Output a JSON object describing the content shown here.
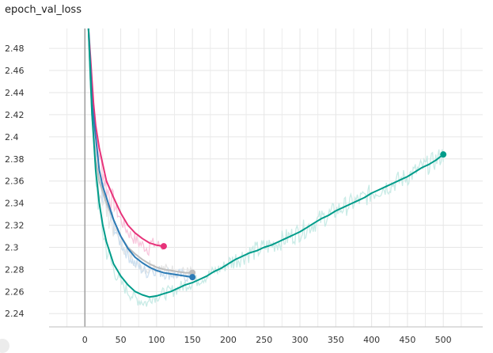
{
  "chart_data": {
    "type": "line",
    "title": "epoch_val_loss",
    "xlabel": "",
    "ylabel": "",
    "xlim": [
      -50,
      555
    ],
    "ylim": [
      2.228,
      2.498
    ],
    "x_ticks": [
      0,
      50,
      100,
      150,
      200,
      250,
      300,
      350,
      400,
      450,
      500
    ],
    "y_ticks": [
      2.24,
      2.26,
      2.28,
      2.3,
      2.32,
      2.34,
      2.36,
      2.38,
      2.4,
      2.42,
      2.44,
      2.46,
      2.48
    ],
    "grid": true,
    "legend": "none",
    "series": [
      {
        "color": "#e7337a",
        "raw_color": "#f7bcd6",
        "x": [
          5,
          8,
          10,
          12,
          15,
          20,
          25,
          30,
          40,
          50,
          60,
          70,
          80,
          90,
          100,
          110
        ],
        "values": [
          2.5,
          2.47,
          2.45,
          2.43,
          2.41,
          2.39,
          2.375,
          2.36,
          2.345,
          2.331,
          2.32,
          2.313,
          2.308,
          2.304,
          2.302,
          2.301
        ]
      },
      {
        "color": "#bdbdbd",
        "raw_color": "#e0e0e0",
        "x": [
          5,
          8,
          10,
          15,
          20,
          30,
          40,
          50,
          60,
          70,
          80,
          90,
          100,
          110,
          120,
          130,
          140,
          150
        ],
        "values": [
          2.5,
          2.45,
          2.42,
          2.38,
          2.36,
          2.34,
          2.325,
          2.31,
          2.3,
          2.294,
          2.289,
          2.285,
          2.282,
          2.28,
          2.279,
          2.278,
          2.277,
          2.277
        ]
      },
      {
        "color": "#2c7bb6",
        "raw_color": "#c7dcef",
        "x": [
          5,
          8,
          10,
          15,
          20,
          25,
          30,
          40,
          50,
          60,
          70,
          80,
          90,
          100,
          110,
          120,
          130,
          140,
          150
        ],
        "values": [
          2.5,
          2.46,
          2.43,
          2.4,
          2.37,
          2.355,
          2.345,
          2.325,
          2.31,
          2.299,
          2.291,
          2.286,
          2.282,
          2.279,
          2.277,
          2.276,
          2.275,
          2.274,
          2.273
        ]
      },
      {
        "color": "#009c8a",
        "raw_color": "#bfe8e2",
        "x": [
          5,
          8,
          10,
          12,
          15,
          20,
          25,
          30,
          35,
          40,
          50,
          60,
          70,
          80,
          90,
          100,
          110,
          120,
          130,
          140,
          150,
          160,
          170,
          180,
          190,
          200,
          210,
          220,
          230,
          240,
          250,
          260,
          270,
          280,
          290,
          300,
          310,
          320,
          330,
          340,
          350,
          360,
          370,
          380,
          390,
          400,
          410,
          420,
          430,
          440,
          450,
          460,
          470,
          480,
          490,
          500
        ],
        "values": [
          2.5,
          2.45,
          2.42,
          2.4,
          2.37,
          2.34,
          2.32,
          2.305,
          2.295,
          2.285,
          2.274,
          2.266,
          2.26,
          2.257,
          2.255,
          2.256,
          2.258,
          2.26,
          2.263,
          2.266,
          2.268,
          2.271,
          2.274,
          2.278,
          2.281,
          2.285,
          2.289,
          2.292,
          2.295,
          2.297,
          2.3,
          2.302,
          2.305,
          2.308,
          2.311,
          2.314,
          2.318,
          2.322,
          2.326,
          2.329,
          2.333,
          2.336,
          2.339,
          2.342,
          2.345,
          2.349,
          2.352,
          2.355,
          2.358,
          2.361,
          2.364,
          2.368,
          2.372,
          2.375,
          2.379,
          2.384
        ]
      }
    ]
  }
}
